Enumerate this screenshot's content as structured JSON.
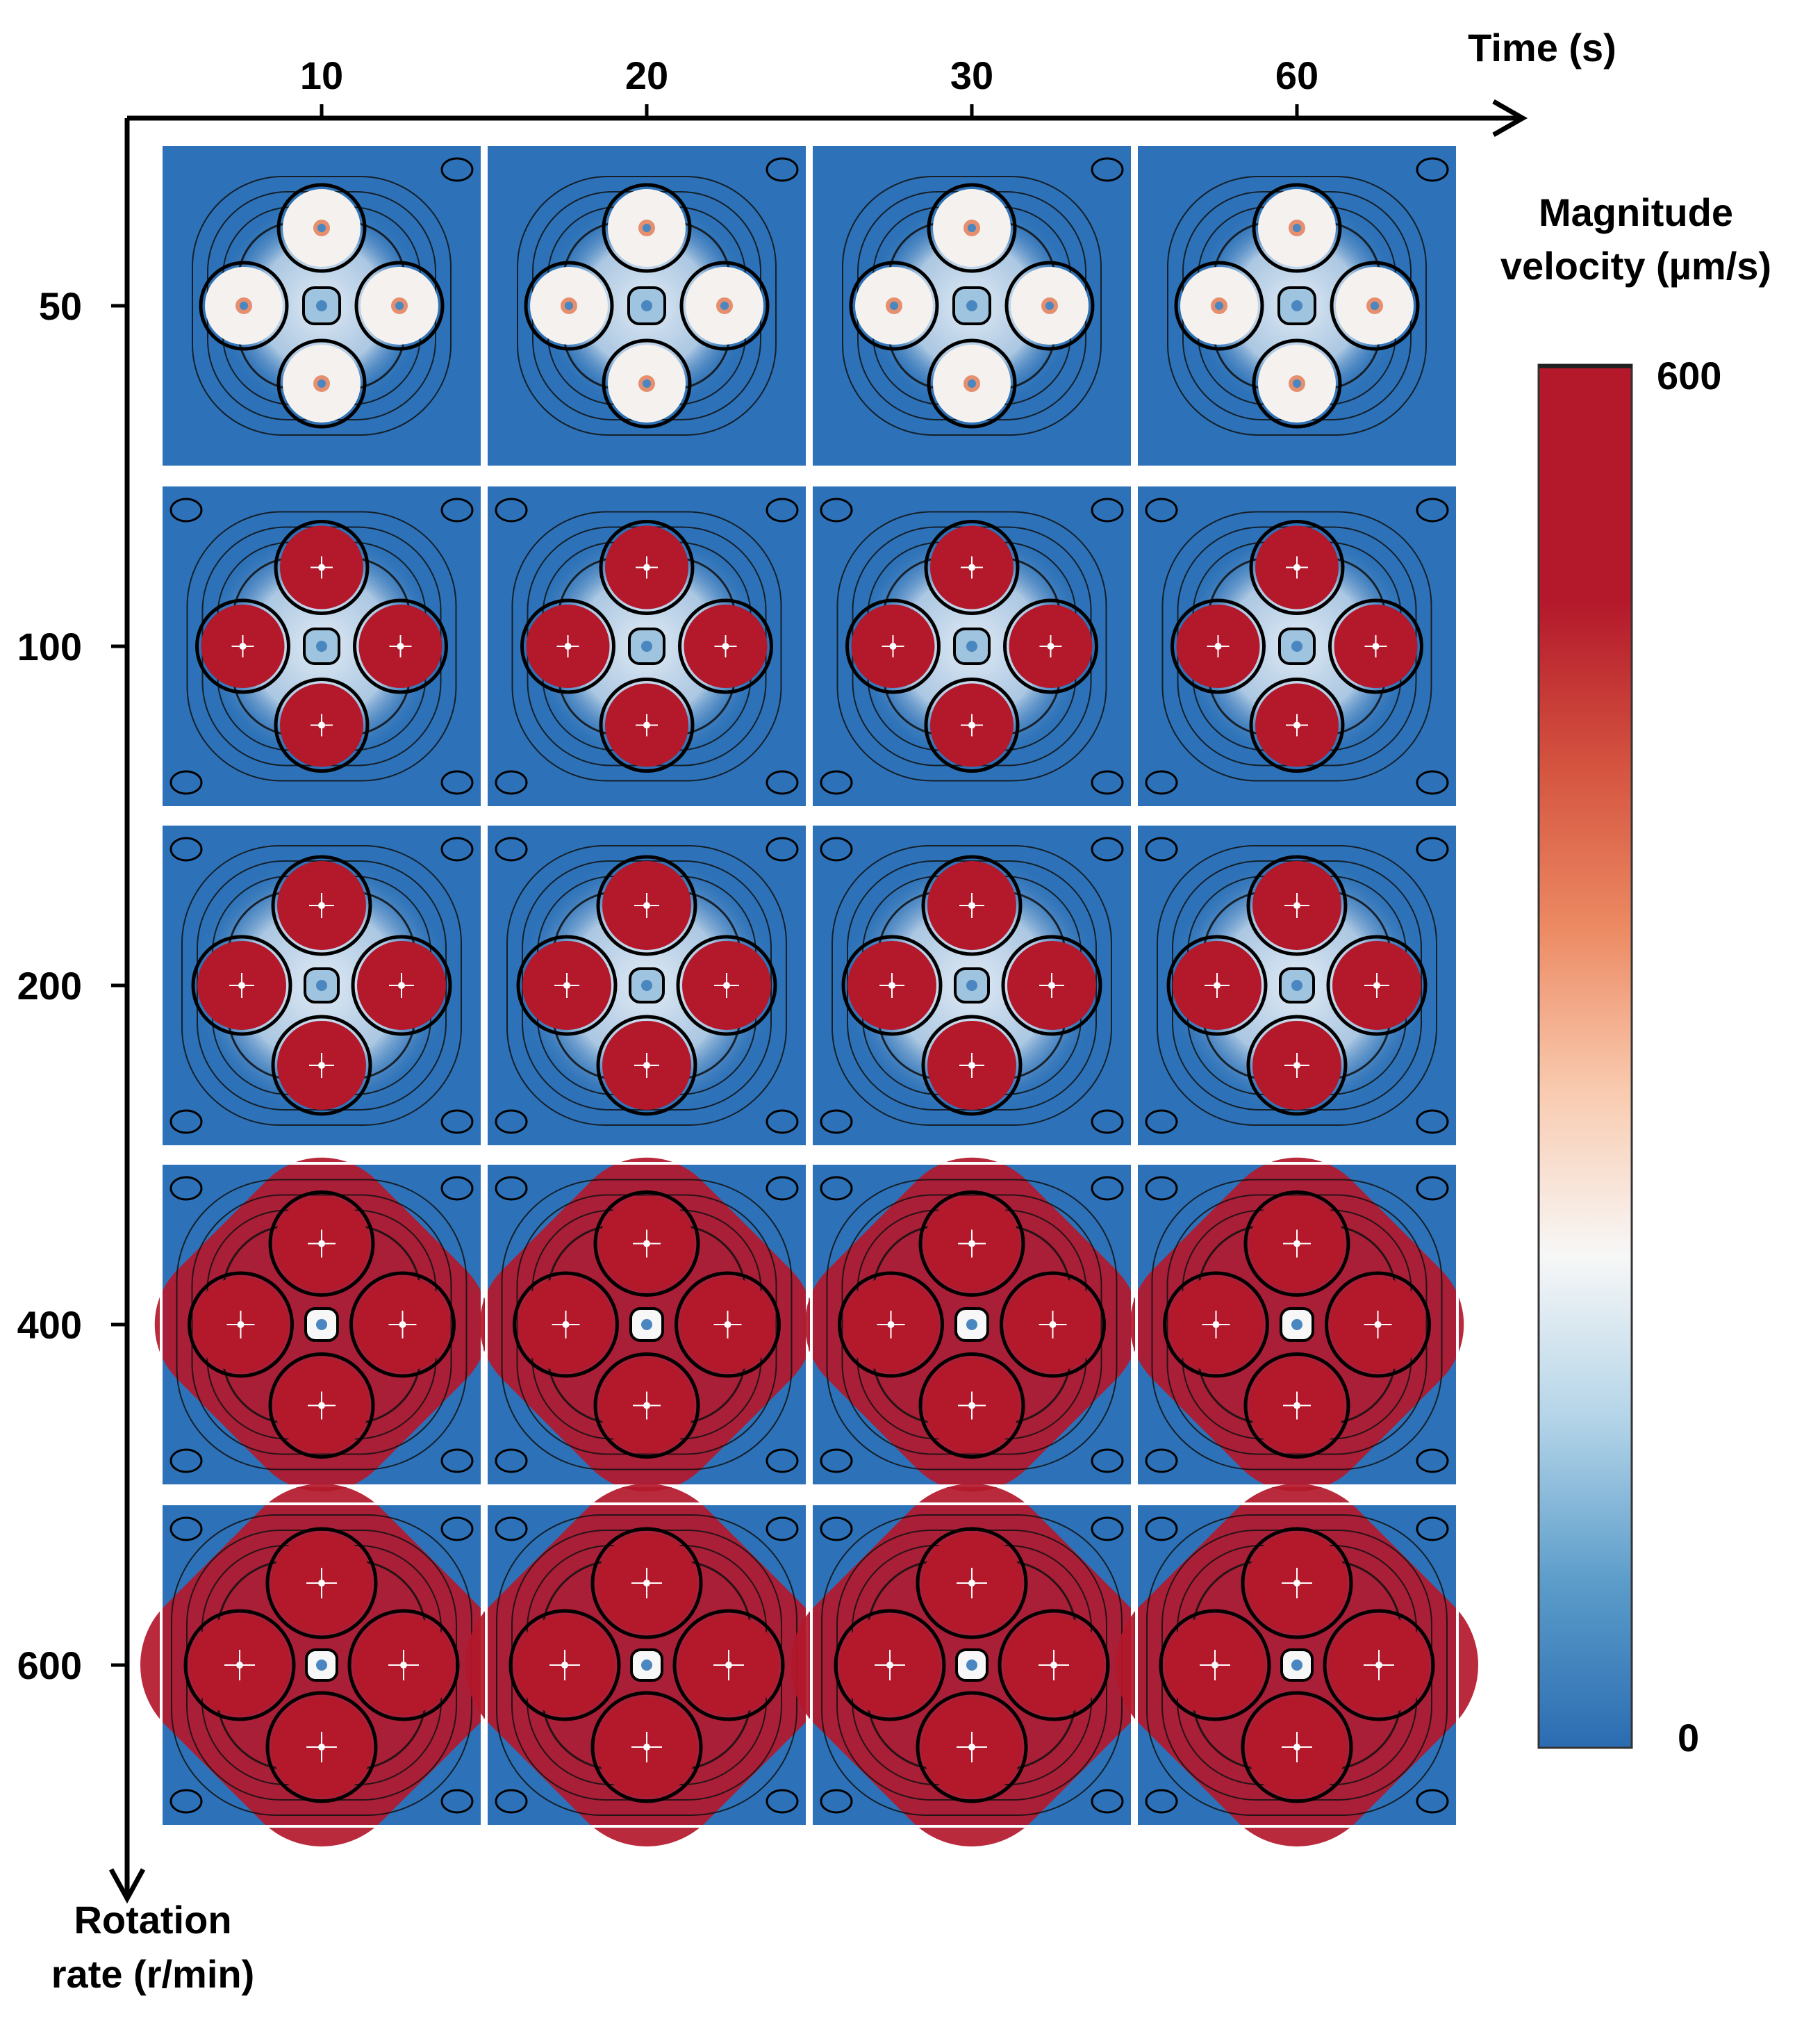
{
  "x_axis": {
    "title": "Time (s)",
    "ticks": [
      "10",
      "20",
      "30",
      "60"
    ]
  },
  "y_axis": {
    "title_line1": "Rotation",
    "title_line2": "rate (r/min)",
    "ticks": [
      "50",
      "100",
      "200",
      "400",
      "600"
    ]
  },
  "colorbar": {
    "title_line1": "Magnitude",
    "title_line2": "velocity (µm/s)",
    "max_label": "600",
    "min_label": "0",
    "colors": [
      "#2b6cb2",
      "#5b9cca",
      "#b3d4e8",
      "#f7f7f7",
      "#f9cbb0",
      "#ec8a63",
      "#d4533f",
      "#b3182b"
    ]
  },
  "panels": {
    "rows_rpm": [
      50,
      100,
      200,
      400,
      600
    ],
    "cols_time_s": [
      10,
      20,
      30,
      60
    ],
    "background_color": "#2d72b8",
    "peak_color": "#b3182b"
  }
}
